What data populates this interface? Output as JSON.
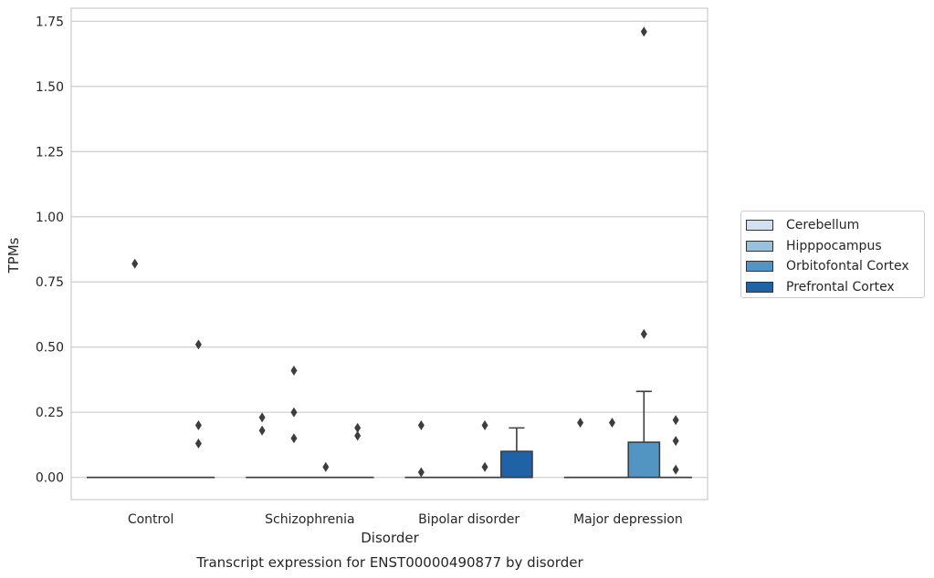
{
  "chart_data": {
    "type": "box",
    "title": "Transcript expression for ENST00000490877 by disorder",
    "xlabel": "Disorder",
    "ylabel": "TPMs",
    "ylim": [
      -0.085,
      1.8
    ],
    "yticks": [
      "0.00",
      "0.25",
      "0.50",
      "0.75",
      "1.00",
      "1.25",
      "1.50",
      "1.75"
    ],
    "grid": true,
    "legend_placement": "right",
    "categories": [
      "Control",
      "Schizophrenia",
      "Bipolar disorder",
      "Major depression"
    ],
    "series": [
      {
        "name": "Cerebellum",
        "color": "#d1e1ef"
      },
      {
        "name": "Hipppocampus",
        "color": "#99c1dc"
      },
      {
        "name": "Orbitofontal Cortex",
        "color": "#5295c3"
      },
      {
        "name": "Prefrontal Cortex",
        "color": "#1f62a6"
      }
    ],
    "boxes": [
      {
        "category": "Control",
        "series": "Cerebellum",
        "q1": 0,
        "median": 0,
        "q3": 0,
        "whislo": 0,
        "whishi": 0,
        "fliers": []
      },
      {
        "category": "Control",
        "series": "Hipppocampus",
        "q1": 0,
        "median": 0,
        "q3": 0,
        "whislo": 0,
        "whishi": 0,
        "fliers": [
          0.82
        ]
      },
      {
        "category": "Control",
        "series": "Orbitofontal Cortex",
        "q1": 0,
        "median": 0,
        "q3": 0,
        "whislo": 0,
        "whishi": 0,
        "fliers": []
      },
      {
        "category": "Control",
        "series": "Prefrontal Cortex",
        "q1": 0,
        "median": 0,
        "q3": 0,
        "whislo": 0,
        "whishi": 0,
        "fliers": [
          0.51,
          0.2,
          0.13
        ]
      },
      {
        "category": "Schizophrenia",
        "series": "Cerebellum",
        "q1": 0,
        "median": 0,
        "q3": 0,
        "whislo": 0,
        "whishi": 0,
        "fliers": [
          0.23,
          0.18
        ]
      },
      {
        "category": "Schizophrenia",
        "series": "Hipppocampus",
        "q1": 0,
        "median": 0,
        "q3": 0,
        "whislo": 0,
        "whishi": 0,
        "fliers": [
          0.41,
          0.25,
          0.15
        ]
      },
      {
        "category": "Schizophrenia",
        "series": "Orbitofontal Cortex",
        "q1": 0,
        "median": 0,
        "q3": 0,
        "whislo": 0,
        "whishi": 0,
        "fliers": [
          0.04
        ]
      },
      {
        "category": "Schizophrenia",
        "series": "Prefrontal Cortex",
        "q1": 0,
        "median": 0,
        "q3": 0,
        "whislo": 0,
        "whishi": 0,
        "fliers": [
          0.19,
          0.16
        ]
      },
      {
        "category": "Bipolar disorder",
        "series": "Cerebellum",
        "q1": 0,
        "median": 0,
        "q3": 0,
        "whislo": 0,
        "whishi": 0,
        "fliers": [
          0.2,
          0.02
        ]
      },
      {
        "category": "Bipolar disorder",
        "series": "Hipppocampus",
        "q1": 0,
        "median": 0,
        "q3": 0,
        "whislo": 0,
        "whishi": 0,
        "fliers": []
      },
      {
        "category": "Bipolar disorder",
        "series": "Orbitofontal Cortex",
        "q1": 0,
        "median": 0,
        "q3": 0,
        "whislo": 0,
        "whishi": 0,
        "fliers": [
          0.2,
          0.04
        ]
      },
      {
        "category": "Bipolar disorder",
        "series": "Prefrontal Cortex",
        "q1": 0,
        "median": 0,
        "q3": 0.1,
        "whislo": 0,
        "whishi": 0.19,
        "fliers": []
      },
      {
        "category": "Major depression",
        "series": "Cerebellum",
        "q1": 0,
        "median": 0,
        "q3": 0,
        "whislo": 0,
        "whishi": 0,
        "fliers": [
          0.21
        ]
      },
      {
        "category": "Major depression",
        "series": "Hipppocampus",
        "q1": 0,
        "median": 0,
        "q3": 0,
        "whislo": 0,
        "whishi": 0,
        "fliers": [
          0.21
        ]
      },
      {
        "category": "Major depression",
        "series": "Orbitofontal Cortex",
        "q1": 0,
        "median": 0,
        "q3": 0.135,
        "whislo": 0,
        "whishi": 0.33,
        "fliers": [
          1.71,
          0.55
        ]
      },
      {
        "category": "Major depression",
        "series": "Prefrontal Cortex",
        "q1": 0,
        "median": 0,
        "q3": 0,
        "whislo": 0,
        "whishi": 0,
        "fliers": [
          0.22,
          0.14,
          0.03
        ]
      }
    ]
  }
}
